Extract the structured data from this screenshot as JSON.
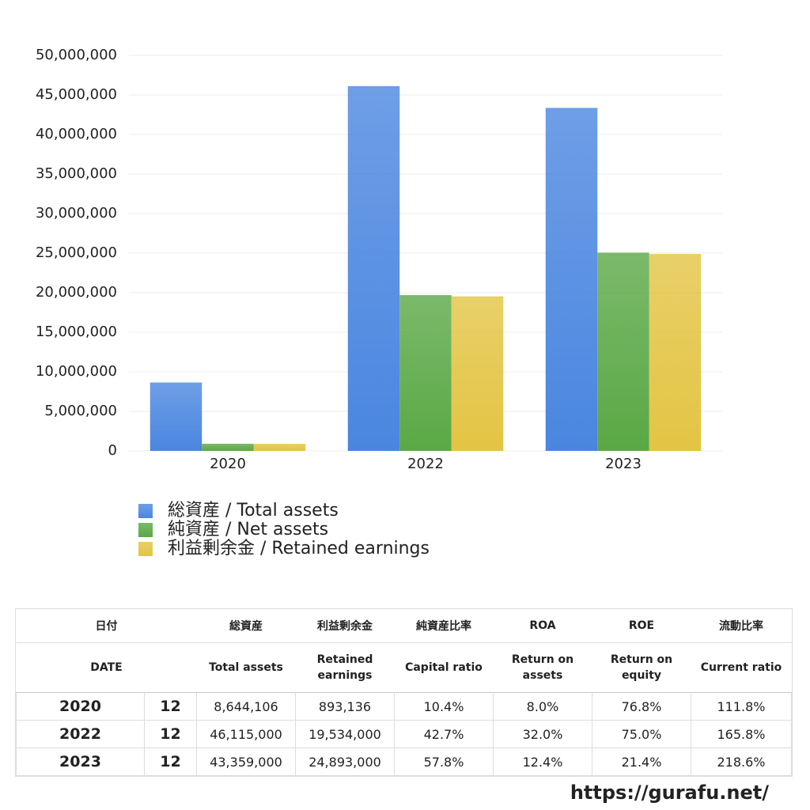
{
  "chart_data": {
    "type": "bar",
    "categories": [
      "2020",
      "2022",
      "2023"
    ],
    "series": [
      {
        "name": "総資産 / Total assets",
        "color": "#4a86e0",
        "values": [
          8644106,
          46115000,
          43359000
        ]
      },
      {
        "name": "純資産 / Net assets",
        "color": "#5aa845",
        "values": [
          899000,
          19691000,
          25061000
        ]
      },
      {
        "name": "利益剰余金 / Retained earnings",
        "color": "#e3c443",
        "values": [
          893136,
          19534000,
          24893000
        ]
      }
    ],
    "ylim": [
      0,
      50000000
    ],
    "yticks": [
      0,
      {
        "value": 5000000,
        "label": "5,000,000"
      },
      {
        "value": 10000000,
        "label": "10,000,000"
      },
      {
        "value": 15000000,
        "label": "15,000,000"
      },
      {
        "value": 20000000,
        "label": "20,000,000"
      },
      {
        "value": 25000000,
        "label": "25,000,000"
      },
      {
        "value": 30000000,
        "label": "30,000,000"
      },
      {
        "value": 35000000,
        "label": "35,000,000"
      },
      {
        "value": 40000000,
        "label": "40,000,000"
      },
      {
        "value": 45000000,
        "label": "45,000,000"
      },
      {
        "value": 50000000,
        "label": "50,000,000"
      }
    ],
    "grid": true
  },
  "table": {
    "header_jp": [
      "日付",
      "総資産",
      "利益剰余金",
      "純資産比率",
      "ROA",
      "ROE",
      "流動比率"
    ],
    "header_en": [
      "DATE",
      "Total assets",
      "Retained earnings",
      "Capital ratio",
      "Return on assets",
      "Return on equity",
      "Current ratio"
    ],
    "rows": [
      [
        "2020",
        "12",
        "8,644,106",
        "893,136",
        "10.4%",
        "8.0%",
        "76.8%",
        "111.8%"
      ],
      [
        "2022",
        "12",
        "46,115,000",
        "19,534,000",
        "42.7%",
        "32.0%",
        "75.0%",
        "165.8%"
      ],
      [
        "2023",
        "12",
        "43,359,000",
        "24,893,000",
        "57.8%",
        "12.4%",
        "21.4%",
        "218.6%"
      ]
    ]
  },
  "footer": "https://gurafu.net/"
}
